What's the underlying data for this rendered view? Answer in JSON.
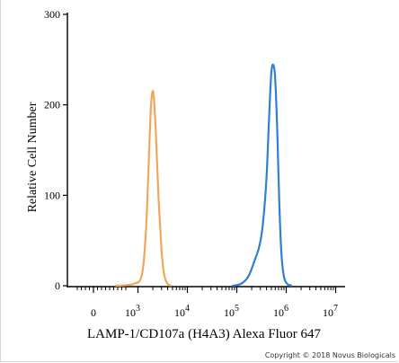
{
  "chart_data": {
    "type": "line",
    "title": "",
    "xlabel": "LAMP-1/CD107a (H4A3) Alexa Fluor 647",
    "ylabel": "Relative Cell Number",
    "x_scale": "biexponential",
    "x_ticks": [
      {
        "base": "0",
        "exp": ""
      },
      {
        "base": "10",
        "exp": "3"
      },
      {
        "base": "10",
        "exp": "4"
      },
      {
        "base": "10",
        "exp": "5"
      },
      {
        "base": "10",
        "exp": "6"
      },
      {
        "base": "10",
        "exp": "7"
      }
    ],
    "y_ticks": [
      "0",
      "100",
      "200",
      "300"
    ],
    "ylim": [
      0,
      300
    ],
    "grid": false,
    "series": [
      {
        "color": "#f2a65a",
        "points": [
          [
            500,
            0
          ],
          [
            900,
            2
          ],
          [
            1200,
            12
          ],
          [
            1450,
            60
          ],
          [
            1650,
            135
          ],
          [
            1800,
            190
          ],
          [
            1950,
            214
          ],
          [
            2100,
            208
          ],
          [
            2300,
            170
          ],
          [
            2600,
            100
          ],
          [
            3000,
            40
          ],
          [
            3400,
            12
          ],
          [
            4000,
            2
          ],
          [
            4800,
            0
          ]
        ]
      },
      {
        "color": "#2f80d1",
        "points": [
          [
            80000,
            0
          ],
          [
            120000,
            2
          ],
          [
            170000,
            10
          ],
          [
            230000,
            28
          ],
          [
            290000,
            45
          ],
          [
            340000,
            70
          ],
          [
            400000,
            120
          ],
          [
            450000,
            185
          ],
          [
            500000,
            235
          ],
          [
            550000,
            244
          ],
          [
            600000,
            228
          ],
          [
            660000,
            170
          ],
          [
            720000,
            95
          ],
          [
            800000,
            35
          ],
          [
            900000,
            10
          ],
          [
            1050000,
            2
          ],
          [
            1300000,
            0
          ]
        ]
      }
    ]
  },
  "copyright": "Copyright © 2018 Novus Biologicals"
}
